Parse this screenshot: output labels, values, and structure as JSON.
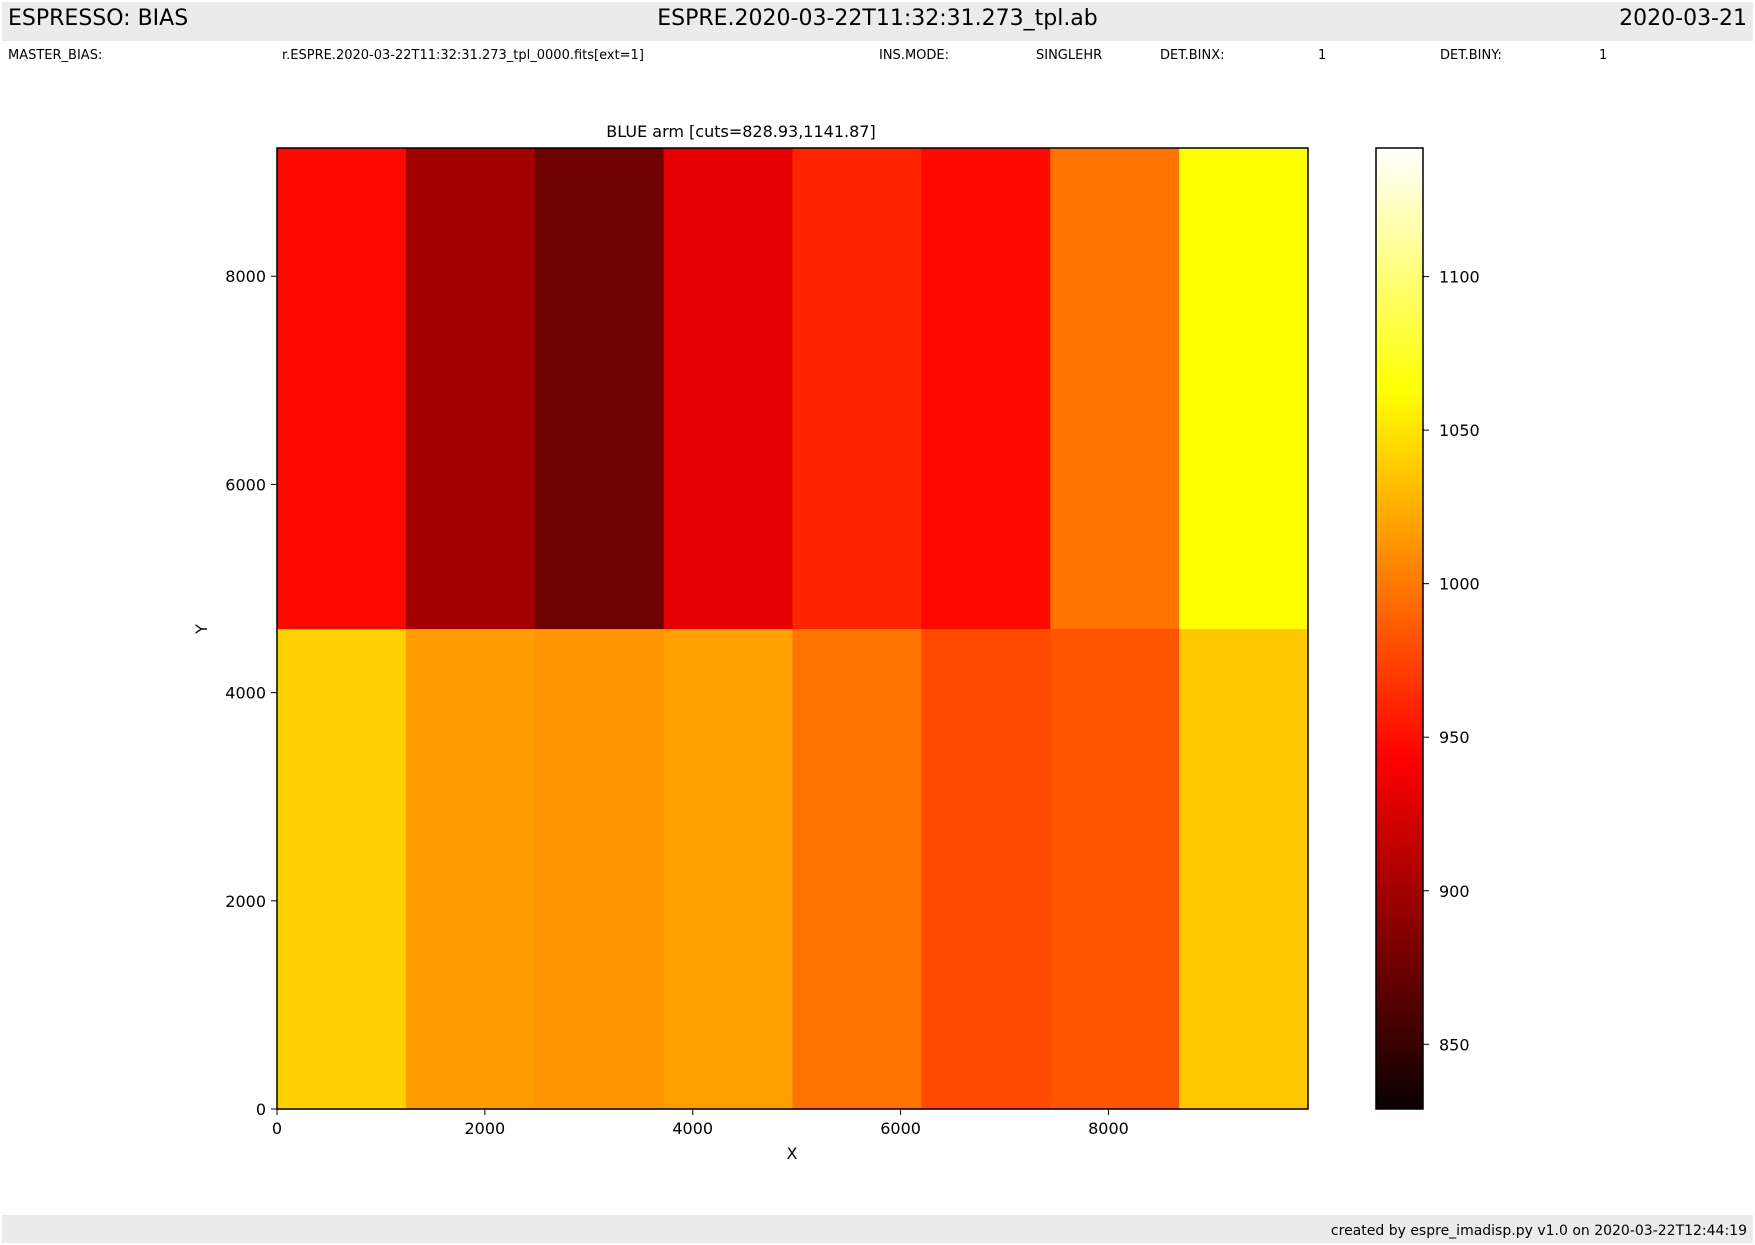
{
  "header": {
    "left": "ESPRESSO: BIAS",
    "center": "ESPRE.2020-03-22T11:32:31.273_tpl.ab",
    "right": "2020-03-21"
  },
  "meta": {
    "master_bias_label": "MASTER_BIAS:",
    "master_bias_value": "r.ESPRE.2020-03-22T11:32:31.273_tpl_0000.fits[ext=1]",
    "ins_mode_label": "INS.MODE:",
    "ins_mode_value": "SINGLEHR",
    "det_binx_label": "DET.BINX:",
    "det_binx_value": "1",
    "det_biny_label": "DET.BINY:",
    "det_biny_value": "1"
  },
  "footer": {
    "text": "created by espre_imadisp.py v1.0 on 2020-03-22T12:44:19"
  },
  "chart_data": {
    "type": "heatmap",
    "title": "BLUE arm [cuts=828.93,1141.87]",
    "xlabel": "X",
    "ylabel": "Y",
    "xlim": [
      0,
      9920
    ],
    "ylim": [
      0,
      9232
    ],
    "xticks": [
      0,
      2000,
      4000,
      6000,
      8000
    ],
    "yticks": [
      0,
      2000,
      4000,
      6000,
      8000
    ],
    "colormap": "hot",
    "colorbar": {
      "vmin": 828.93,
      "vmax": 1141.87,
      "ticks": [
        850,
        900,
        950,
        1000,
        1050,
        1100
      ]
    },
    "x_edges": [
      0,
      1240,
      2480,
      3720,
      4960,
      6200,
      7440,
      8680,
      9920
    ],
    "y_edges": [
      0,
      4616,
      9232
    ],
    "values": [
      [
        1041,
        1016,
        1013,
        1018,
        998,
        978,
        983,
        1036
      ],
      [
        947,
        897,
        874,
        927,
        960,
        947,
        997,
        1063
      ]
    ],
    "grid": false,
    "legend": "none"
  }
}
